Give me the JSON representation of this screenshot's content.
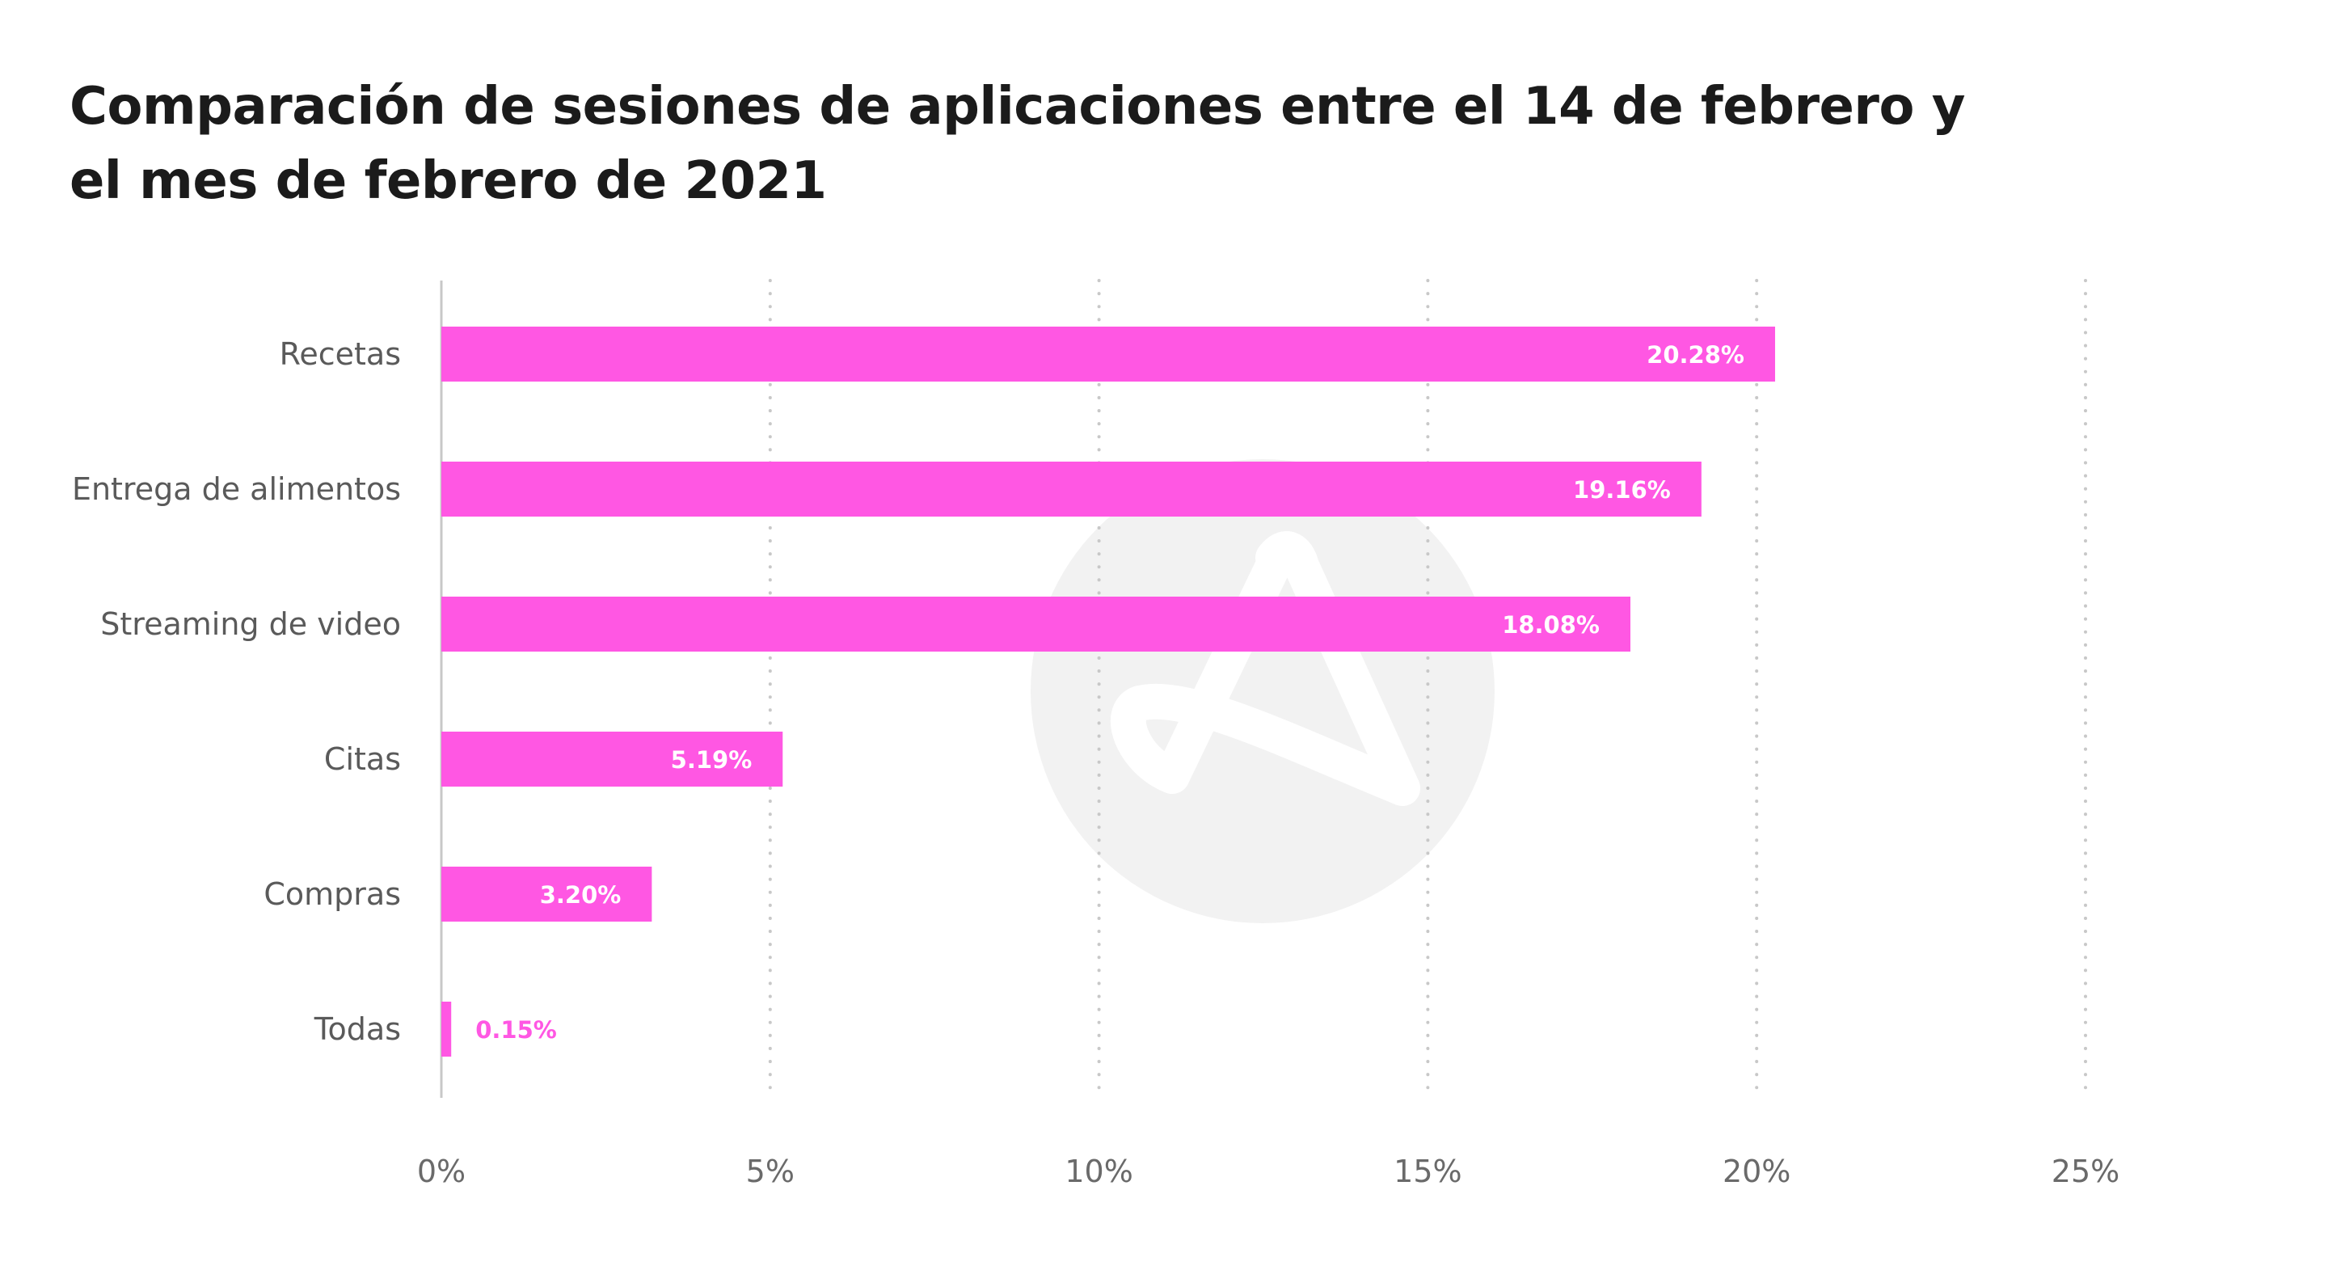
{
  "chart_data": {
    "type": "bar",
    "orientation": "horizontal",
    "title": "Comparación de sesiones de aplicaciones entre el 14 de febrero y el mes de febrero de 2021",
    "categories": [
      "Recetas",
      "Entrega de alimentos",
      "Streaming de video",
      "Citas",
      "Compras",
      "Todas"
    ],
    "values": [
      20.28,
      19.16,
      18.08,
      5.19,
      3.2,
      0.15
    ],
    "data_labels": [
      "20.28%",
      "19.16%",
      "18.08%",
      "5.19%",
      "3.20%",
      "0.15%"
    ],
    "xlim": [
      0,
      25
    ],
    "x_ticks": [
      0,
      5,
      10,
      15,
      20,
      25
    ],
    "x_tick_labels": [
      "0%",
      "5%",
      "10%",
      "15%",
      "20%",
      "25%"
    ],
    "grid": "vertical-dotted",
    "legend": "none",
    "colors": {
      "bar": "#FF57E3",
      "label_inside": "#ffffff",
      "label_outside": "#FF57E3",
      "grid": "#c8c8c8",
      "axis": "#c8c8c8",
      "watermark": "#f2f2f2"
    }
  }
}
